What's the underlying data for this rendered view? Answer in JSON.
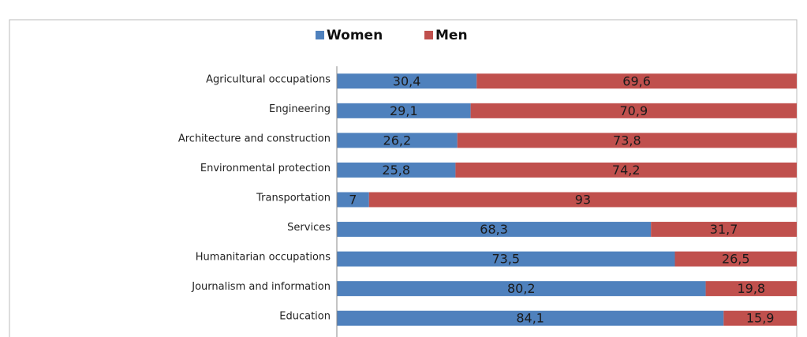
{
  "chart_data": {
    "type": "stacked_barh",
    "categories": [
      "Agricultural occupations",
      "Engineering",
      "Architecture and construction",
      "Environmental protection",
      "Transportation",
      "Services",
      "Humanitarian occupations",
      "Journalism and information",
      "Education"
    ],
    "series": [
      {
        "name": "Women",
        "color": "#4f81bd",
        "values": [
          30.4,
          29.1,
          26.2,
          25.8,
          7,
          68.3,
          73.5,
          80.2,
          84.1
        ],
        "value_labels": [
          "30,4",
          "29,1",
          "26,2",
          "25,8",
          "7",
          "68,3",
          "73,5",
          "80,2",
          "84,1"
        ]
      },
      {
        "name": "Men",
        "color": "#c0504d",
        "values": [
          69.6,
          70.9,
          73.8,
          74.2,
          93,
          31.7,
          26.5,
          19.8,
          15.9
        ],
        "value_labels": [
          "69,6",
          "70,9",
          "73,8",
          "74,2",
          "93",
          "31,7",
          "26,5",
          "19,8",
          "15,9"
        ]
      }
    ],
    "xlim": [
      0,
      100
    ],
    "legend": "top"
  }
}
